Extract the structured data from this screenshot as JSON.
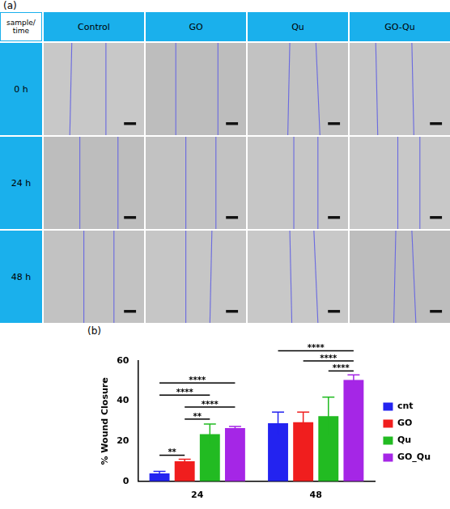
{
  "figure_a": {
    "label": "(a)",
    "corner": "sample/ time",
    "columns": [
      "Control",
      "GO",
      "Qu",
      "GO-Qu"
    ],
    "rows": [
      "0 h",
      "24 h",
      "48 h"
    ]
  },
  "chart_data": {
    "type": "bar",
    "panel": "(b)",
    "categories": [
      "24",
      "48"
    ],
    "y_label": "% Wound Closure",
    "ylim": [
      0,
      60
    ],
    "yticks": [
      0,
      20,
      40,
      60
    ],
    "grid": false,
    "legend": "right",
    "series": [
      {
        "name": "cnt",
        "color": "#2323f0",
        "values": [
          4,
          29
        ],
        "error": [
          1,
          5.5
        ]
      },
      {
        "name": "GO",
        "color": "#f01e1e",
        "values": [
          10,
          29.5
        ],
        "error": [
          1,
          5
        ]
      },
      {
        "name": "Qu",
        "color": "#22bb22",
        "values": [
          23.5,
          32.5
        ],
        "error": [
          5,
          9.5
        ]
      },
      {
        "name": "GO_Qu",
        "color": "#a526e6",
        "values": [
          26.5,
          50.5
        ],
        "error": [
          0.8,
          2.5
        ]
      }
    ],
    "annotations": [
      {
        "text": "**",
        "category": "24",
        "from": "cnt",
        "to": "GO",
        "y": 13
      },
      {
        "text": "**",
        "category": "24",
        "from": "GO",
        "to": "Qu",
        "y": 31
      },
      {
        "text": "****",
        "category": "24",
        "from": "GO",
        "to": "GO_Qu",
        "y": 37
      },
      {
        "text": "****",
        "category": "24",
        "from": "cnt",
        "to": "Qu",
        "y": 43
      },
      {
        "text": "****",
        "category": "24",
        "from": "cnt",
        "to": "GO_Qu",
        "y": 49
      },
      {
        "text": "****",
        "category": "48",
        "from": "Qu",
        "to": "GO_Qu",
        "y": 55
      },
      {
        "text": "****",
        "category": "48",
        "from": "GO",
        "to": "GO_Qu",
        "y": 60
      },
      {
        "text": "****",
        "category": "48",
        "from": "cnt",
        "to": "GO_Qu",
        "y": 65
      }
    ]
  }
}
